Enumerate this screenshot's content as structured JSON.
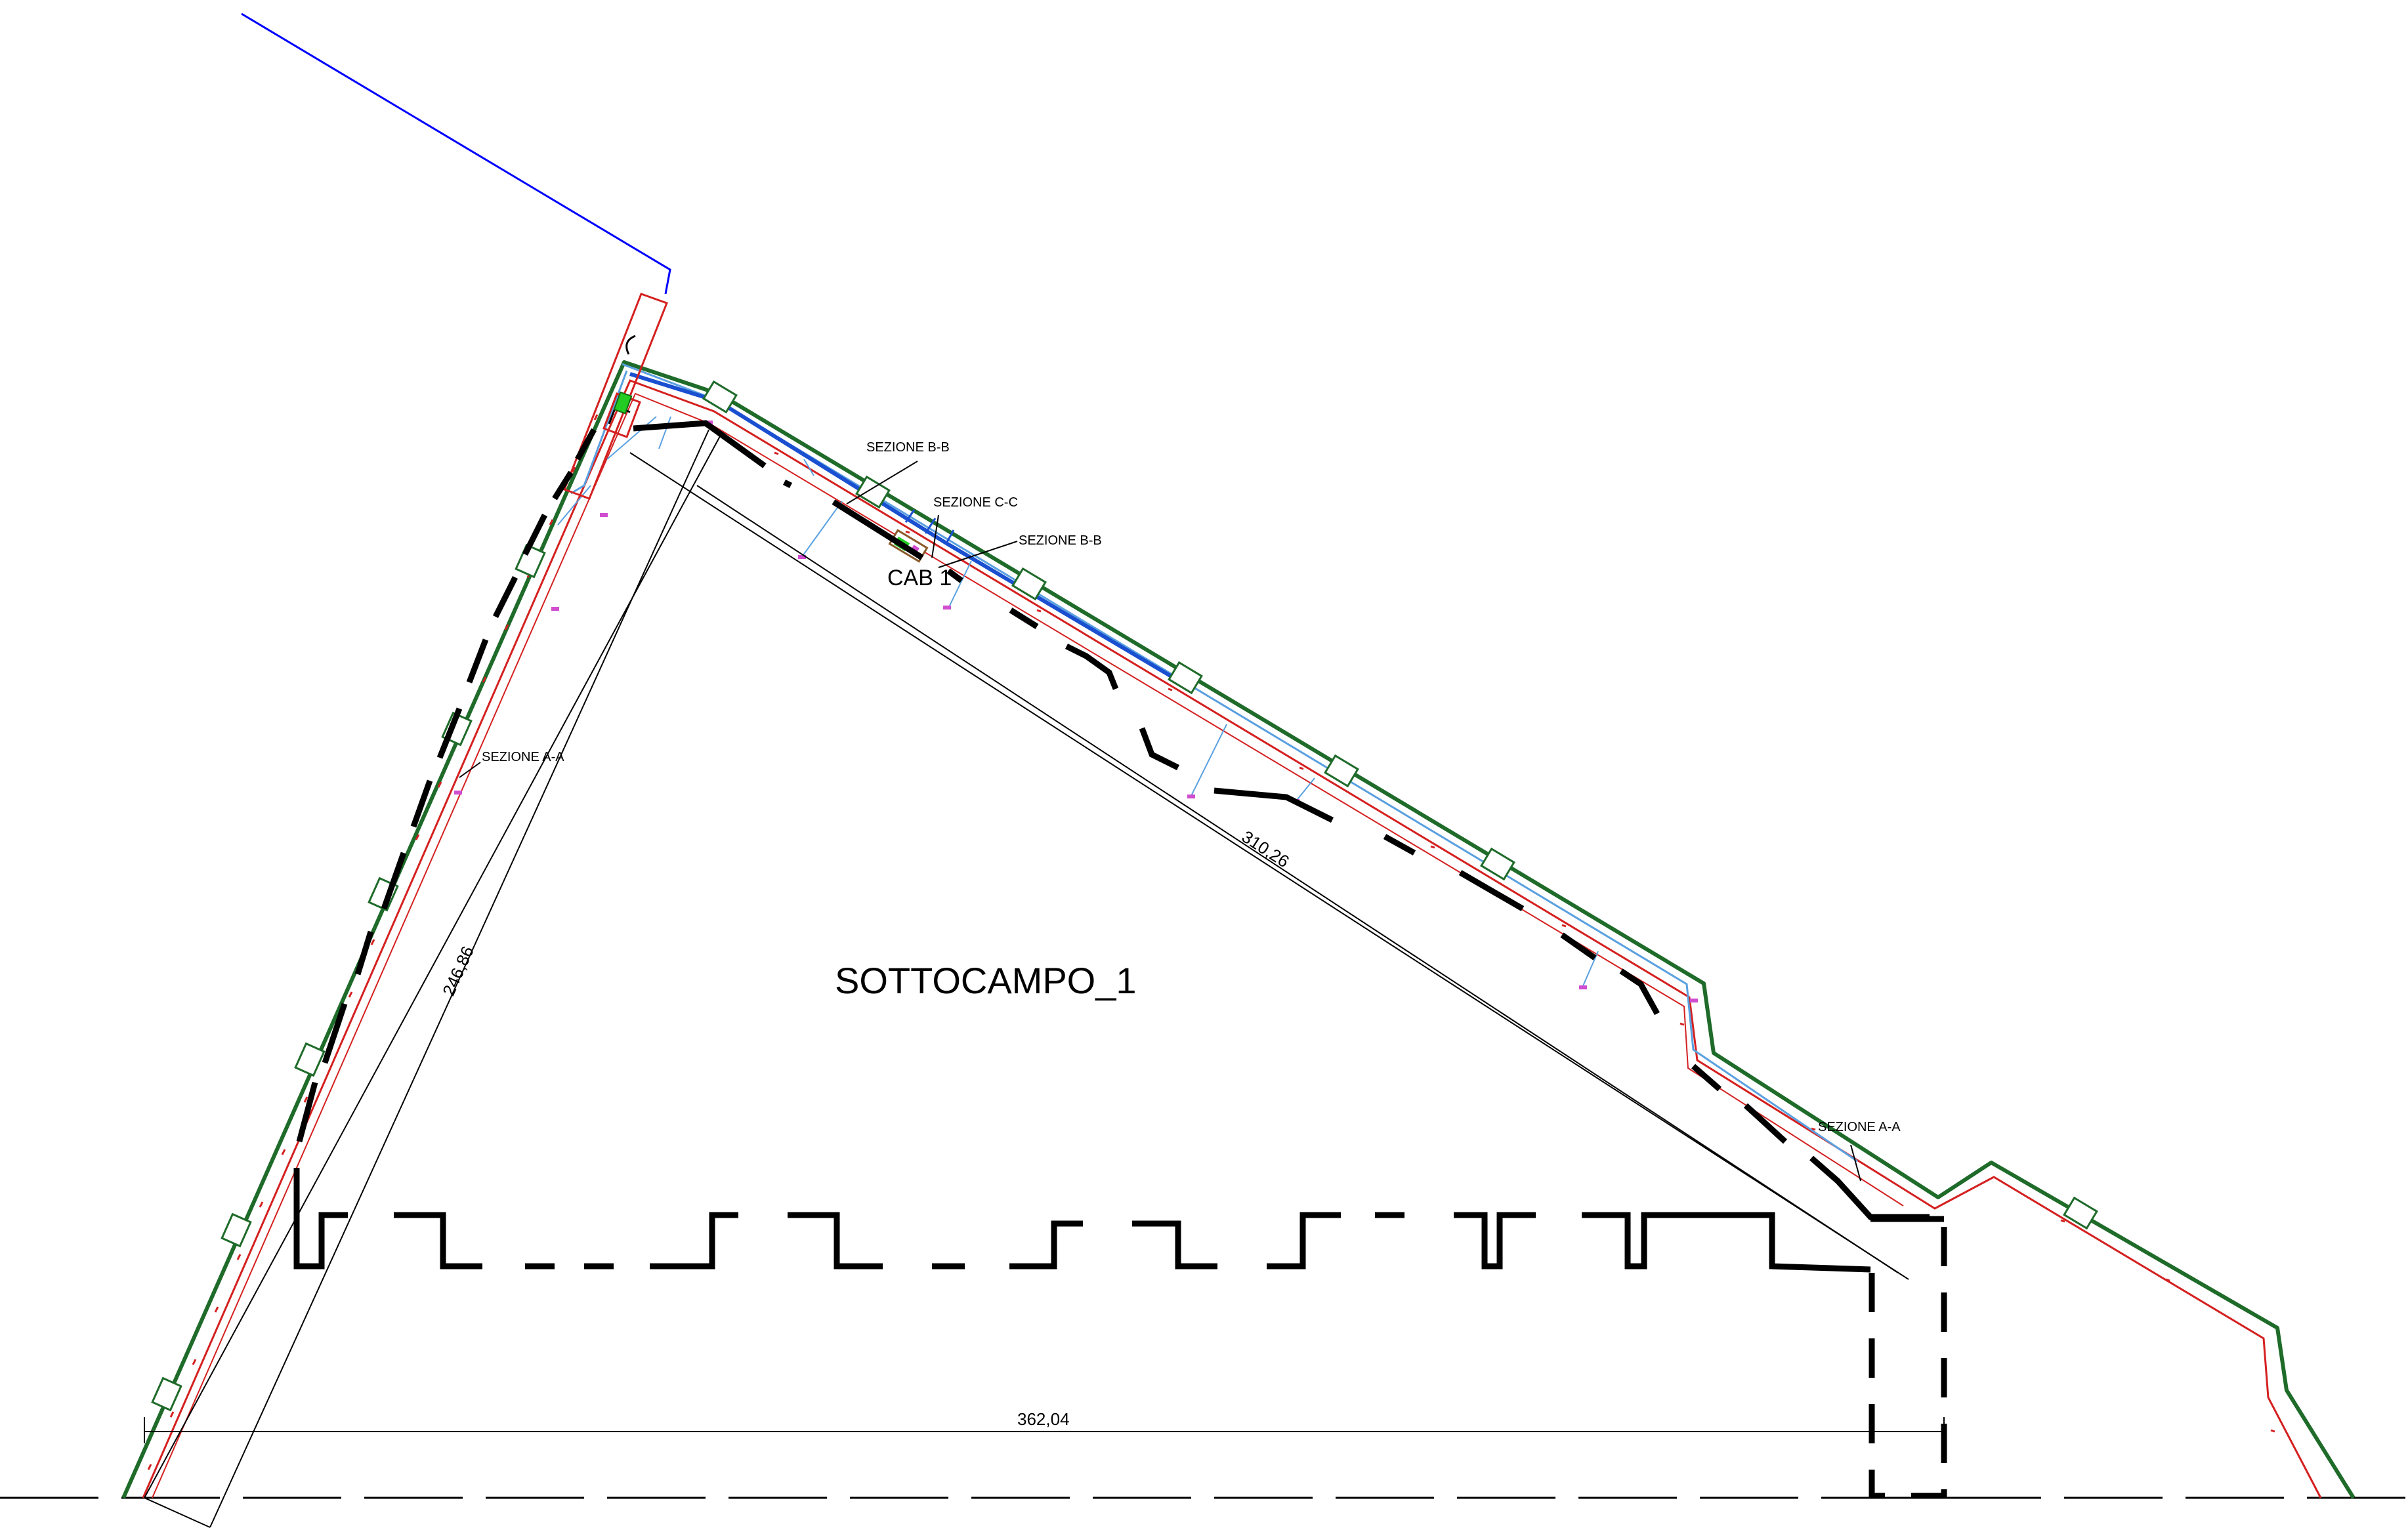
{
  "labels": {
    "field_name": "SOTTOCAMPO_1",
    "cabin": "CAB 1",
    "section_bb_1": "SEZIONE B-B",
    "section_cc": "SEZIONE C-C",
    "section_bb_2": "SEZIONE B-B",
    "section_aa_1": "SEZIONE A-A",
    "section_aa_2": "SEZIONE A-A"
  },
  "dimensions": {
    "left_side": "246,86",
    "diagonal": "310,26",
    "base": "362,04"
  },
  "colors": {
    "boundary": "#1f6b2a",
    "inner_line": "#d42020",
    "cable": "#1a4fd0",
    "cable_light": "#5aa0e0",
    "access_road": "#0000ff",
    "fence": "#000000",
    "marker": "#d04dd0",
    "equipment": "#22cc22"
  }
}
